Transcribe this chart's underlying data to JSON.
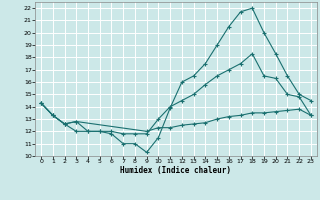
{
  "xlabel": "Humidex (Indice chaleur)",
  "bg_color": "#cce8e8",
  "grid_color": "#ffffff",
  "line_color": "#1a7070",
  "xlim": [
    -0.5,
    23.5
  ],
  "ylim": [
    10,
    22.5
  ],
  "xticks": [
    0,
    1,
    2,
    3,
    4,
    5,
    6,
    7,
    8,
    9,
    10,
    11,
    12,
    13,
    14,
    15,
    16,
    17,
    18,
    19,
    20,
    21,
    22,
    23
  ],
  "yticks": [
    10,
    11,
    12,
    13,
    14,
    15,
    16,
    17,
    18,
    19,
    20,
    21,
    22
  ],
  "line1_x": [
    0,
    1,
    2,
    3,
    4,
    5,
    6,
    7,
    8,
    9,
    10,
    11,
    12,
    13,
    14,
    15,
    16,
    17,
    18,
    19,
    20,
    21,
    22,
    23
  ],
  "line1_y": [
    14.3,
    13.3,
    12.6,
    12.0,
    12.0,
    12.0,
    11.8,
    11.0,
    11.0,
    10.3,
    11.5,
    13.9,
    16.0,
    16.5,
    17.5,
    19.0,
    20.5,
    21.7,
    22.0,
    20.0,
    18.3,
    16.5,
    15.0,
    14.5
  ],
  "line2_x": [
    0,
    1,
    2,
    3,
    4,
    5,
    6,
    7,
    8,
    9,
    10,
    11,
    12,
    13,
    14,
    15,
    16,
    17,
    18,
    19,
    20,
    21,
    22,
    23
  ],
  "line2_y": [
    14.3,
    13.3,
    12.6,
    12.8,
    12.0,
    12.0,
    12.0,
    11.8,
    11.8,
    11.8,
    13.0,
    14.0,
    14.5,
    15.0,
    15.8,
    16.5,
    17.0,
    17.5,
    18.3,
    16.5,
    16.3,
    15.0,
    14.8,
    13.3
  ],
  "line3_x": [
    0,
    1,
    2,
    3,
    9,
    10,
    11,
    12,
    13,
    14,
    15,
    16,
    17,
    18,
    19,
    20,
    21,
    22,
    23
  ],
  "line3_y": [
    14.3,
    13.3,
    12.6,
    12.8,
    12.0,
    12.3,
    12.3,
    12.5,
    12.6,
    12.7,
    13.0,
    13.2,
    13.3,
    13.5,
    13.5,
    13.6,
    13.7,
    13.8,
    13.3
  ]
}
